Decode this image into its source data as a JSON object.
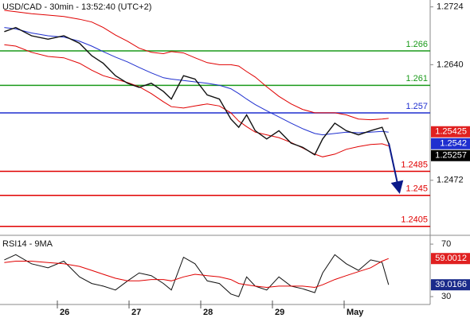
{
  "chart_data": {
    "type": "line",
    "title": "USD/CAD - 30min - 13:52:40 (UTC+2)",
    "x": [
      25.26,
      25.42,
      25.64,
      25.87,
      26.09,
      26.31,
      26.48,
      26.64,
      26.81,
      26.98,
      27.14,
      27.31,
      27.48,
      27.59,
      27.76,
      27.92,
      28.09,
      28.26,
      28.42,
      28.53,
      28.64,
      28.76,
      28.92,
      29.09,
      29.26,
      29.42,
      29.59,
      29.7,
      29.87,
      30.03,
      30.2,
      30.37,
      30.53,
      30.62
    ],
    "series": [
      {
        "color": "#e00000",
        "values": [
          1.2719,
          1.2717,
          1.2714,
          1.2712,
          1.271,
          1.2706,
          1.2702,
          1.2694,
          1.2683,
          1.2674,
          1.2664,
          1.2658,
          1.2656,
          1.2659,
          1.2657,
          1.265,
          1.2643,
          1.264,
          1.264,
          1.2638,
          1.263,
          1.2622,
          1.2608,
          1.2594,
          1.2583,
          1.2575,
          1.257,
          1.257,
          1.257,
          1.2567,
          1.2561,
          1.256,
          1.2561,
          1.2562
        ]
      },
      {
        "color": "#e00000",
        "values": [
          1.2669,
          1.2667,
          1.2658,
          1.2652,
          1.265,
          1.2642,
          1.2632,
          1.2624,
          1.2619,
          1.2614,
          1.2608,
          1.2598,
          1.2586,
          1.2579,
          1.2577,
          1.258,
          1.2583,
          1.258,
          1.257,
          1.2558,
          1.255,
          1.2542,
          1.2538,
          1.2534,
          1.2527,
          1.2519,
          1.251,
          1.2506,
          1.251,
          1.2517,
          1.2521,
          1.2524,
          1.2525,
          1.2522
        ]
      },
      {
        "color": "#1f2fcf",
        "values": [
          1.2694,
          1.2692,
          1.2686,
          1.2682,
          1.268,
          1.2674,
          1.2667,
          1.2659,
          1.2651,
          1.2644,
          1.2636,
          1.2628,
          1.2621,
          1.2619,
          1.2617,
          1.2615,
          1.2613,
          1.261,
          1.2605,
          1.2598,
          1.259,
          1.2582,
          1.2573,
          1.2564,
          1.2555,
          1.2547,
          1.254,
          1.2538,
          1.254,
          1.2542,
          1.2541,
          1.2542,
          1.2543,
          1.2542
        ]
      },
      {
        "color": "#111111",
        "values": [
          1.2688,
          1.2694,
          1.2682,
          1.2677,
          1.2682,
          1.2671,
          1.2653,
          1.2642,
          1.2624,
          1.2613,
          1.2607,
          1.2613,
          1.2601,
          1.259,
          1.2624,
          1.2619,
          1.2596,
          1.259,
          1.2561,
          1.2549,
          1.2567,
          1.2544,
          1.2532,
          1.2544,
          1.2526,
          1.252,
          1.2509,
          1.2532,
          1.2555,
          1.2544,
          1.2538,
          1.2544,
          1.2549,
          1.25257
        ]
      }
    ],
    "xlim": [
      25.2,
      31.2
    ],
    "xticks": [
      26,
      27,
      28,
      29,
      {
        "value": 30,
        "label": "May"
      }
    ],
    "ylim": [
      1.2392,
      1.2734
    ],
    "yticks": [
      1.2724,
      {
        "value": 1.264,
        "label": "1.2640"
      },
      1.2472
    ],
    "levels": [
      {
        "value": 1.266,
        "color": "#1a9a1a"
      },
      {
        "value": 1.261,
        "color": "#1a9a1a"
      },
      {
        "value": 1.257,
        "color": "#1f2fcf"
      },
      {
        "value": 1.2485,
        "color": "#e00000"
      },
      {
        "value": 1.245,
        "color": "#e00000"
      },
      {
        "value": 1.2405,
        "color": "#e00000"
      }
    ],
    "price_tags": [
      {
        "value": 1.25425,
        "color": "#e02020"
      },
      {
        "value": 1.2542,
        "color": "#1f2fcf"
      },
      {
        "value": 1.25257,
        "color": "#000000"
      }
    ],
    "rsi": {
      "title": "RSI14 - 9MA",
      "series": [
        {
          "color": "#111111",
          "values": [
            58,
            62,
            55,
            52,
            57,
            45,
            40,
            38,
            35,
            42,
            48,
            46,
            40,
            35,
            60,
            55,
            42,
            40,
            32,
            30,
            45,
            38,
            35,
            45,
            38,
            36,
            33,
            48,
            62,
            55,
            50,
            58,
            56,
            39.0166
          ]
        },
        {
          "color": "#e00000",
          "values": [
            56,
            57,
            57,
            56,
            55,
            53,
            50,
            47,
            44,
            42,
            42,
            43,
            43,
            42,
            45,
            47,
            46,
            45,
            43,
            40,
            39,
            38,
            37,
            38,
            38,
            38,
            37,
            39,
            43,
            46,
            49,
            52,
            57,
            59.0012
          ]
        }
      ],
      "ylim": [
        24,
        75.5
      ],
      "yticks": [
        70,
        30
      ],
      "tags": [
        {
          "value": 59.0012,
          "color": "#e02020"
        },
        {
          "value": 39.0166,
          "color": "#1a2a8a"
        }
      ]
    }
  }
}
